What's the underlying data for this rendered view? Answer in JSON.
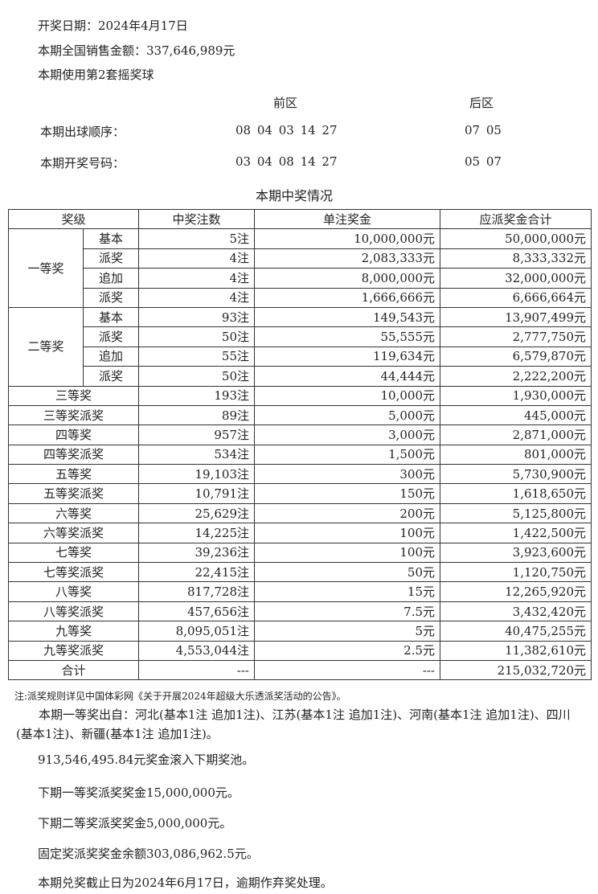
{
  "header": {
    "draw_date": "开奖日期：2024年4月17日",
    "sales": "本期全国销售金额：337,646,989元",
    "ball_set": "本期使用第2套摇奖球"
  },
  "numbers": {
    "front_label": "前区",
    "back_label": "后区",
    "order_label": "本期出球顺序：",
    "order_front": "08 04 03 14 27",
    "order_back": "07 05",
    "result_label": "本期开奖号码：",
    "result_front": "03 04 08 14 27",
    "result_back": "05 07"
  },
  "table": {
    "title": "本期中奖情况",
    "headers": [
      "奖级",
      "中奖注数",
      "单注奖金",
      "应派奖金合计"
    ],
    "group1": {
      "label": "一等奖",
      "rows": [
        [
          "基本",
          "5注",
          "10,000,000元",
          "50,000,000元"
        ],
        [
          "派奖",
          "4注",
          "2,083,333元",
          "8,333,332元"
        ],
        [
          "追加",
          "4注",
          "8,000,000元",
          "32,000,000元"
        ],
        [
          "派奖",
          "4注",
          "1,666,666元",
          "6,666,664元"
        ]
      ]
    },
    "group2": {
      "label": "二等奖",
      "rows": [
        [
          "基本",
          "93注",
          "149,543元",
          "13,907,499元"
        ],
        [
          "派奖",
          "50注",
          "55,555元",
          "2,777,750元"
        ],
        [
          "追加",
          "55注",
          "119,634元",
          "6,579,870元"
        ],
        [
          "派奖",
          "50注",
          "44,444元",
          "2,222,200元"
        ]
      ]
    },
    "rows": [
      [
        "三等奖",
        "193注",
        "10,000元",
        "1,930,000元"
      ],
      [
        "三等奖派奖",
        "89注",
        "5,000元",
        "445,000元"
      ],
      [
        "四等奖",
        "957注",
        "3,000元",
        "2,871,000元"
      ],
      [
        "四等奖派奖",
        "534注",
        "1,500元",
        "801,000元"
      ],
      [
        "五等奖",
        "19,103注",
        "300元",
        "5,730,900元"
      ],
      [
        "五等奖派奖",
        "10,791注",
        "150元",
        "1,618,650元"
      ],
      [
        "六等奖",
        "25,629注",
        "200元",
        "5,125,800元"
      ],
      [
        "六等奖派奖",
        "14,225注",
        "100元",
        "1,422,500元"
      ],
      [
        "七等奖",
        "39,236注",
        "100元",
        "3,923,600元"
      ],
      [
        "七等奖派奖",
        "22,415注",
        "50元",
        "1,120,750元"
      ],
      [
        "八等奖",
        "817,728注",
        "15元",
        "12,265,920元"
      ],
      [
        "八等奖派奖",
        "457,656注",
        "7.5元",
        "3,432,420元"
      ],
      [
        "九等奖",
        "8,095,051注",
        "5元",
        "40,475,255元"
      ],
      [
        "九等奖派奖",
        "4,553,044注",
        "2.5元",
        "11,382,610元"
      ],
      [
        "合计",
        "---",
        "---",
        "215,032,720元"
      ]
    ]
  },
  "footer": {
    "note": "注:派奖规则详见中国体彩网《关于开展2024年超级大乐透派奖活动的公告》。",
    "winners": "本期一等奖出自：河北(基本1注 追加1注)、江苏(基本1注 追加1注)、河南(基本1注 追加1注)、四川(基本1注)、新疆(基本1注 追加1注)。",
    "rollover": "913,546,495.84元奖金滚入下期奖池。",
    "next_first": "下期一等奖派奖奖金15,000,000元。",
    "next_second": "下期二等奖派奖奖金5,000,000元。",
    "fixed_balance": "固定奖派奖奖金余额303,086,962.5元。",
    "deadline": "本期兑奖截止日为2024年6月17日，逾期作弃奖处理。"
  }
}
